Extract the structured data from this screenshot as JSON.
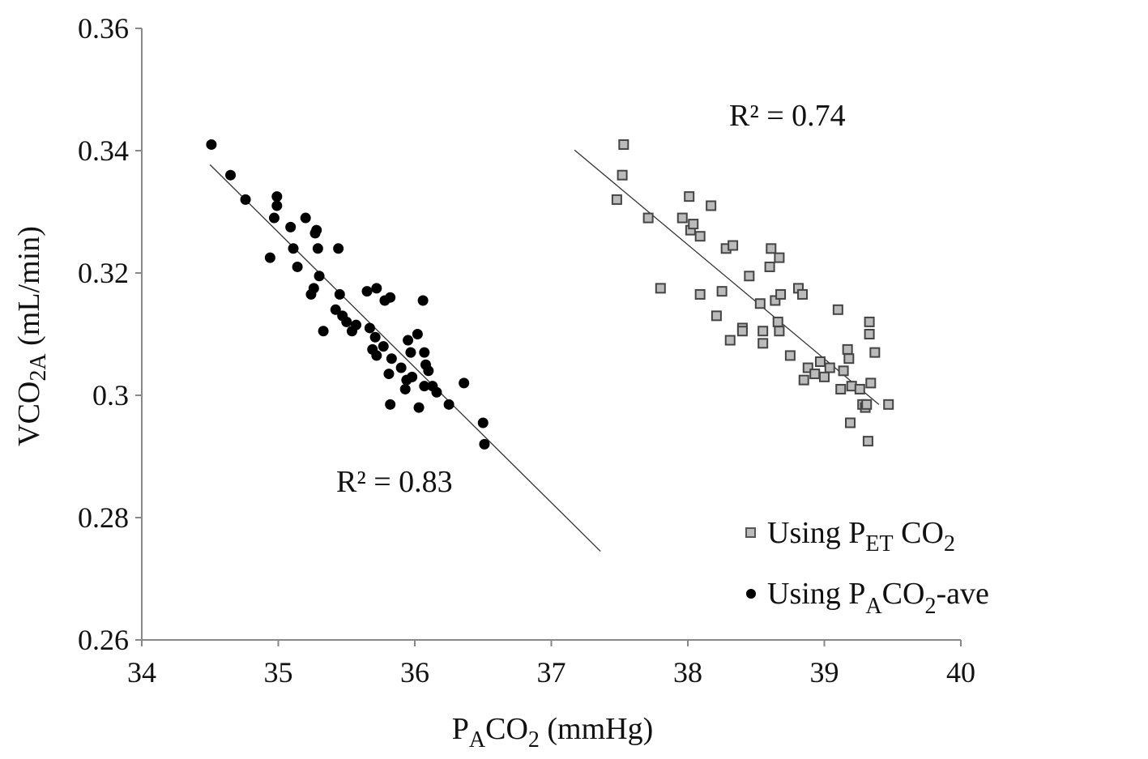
{
  "chart_data": {
    "type": "scatter",
    "title": "",
    "xlabel": {
      "base": "P",
      "sub": "A",
      "mid": "CO",
      "sub2": "2",
      "tail": " (mmHg)"
    },
    "ylabel": {
      "base": "VCO",
      "sub": "2A",
      "tail": " (mL/min)"
    },
    "xlim": [
      34,
      40
    ],
    "ylim": [
      0.26,
      0.36
    ],
    "x_ticks": [
      34,
      35,
      36,
      37,
      38,
      39,
      40
    ],
    "x_tick_labels": [
      "34",
      "35",
      "36",
      "37",
      "38",
      "39",
      "40"
    ],
    "y_ticks": [
      0.26,
      0.28,
      0.3,
      0.32,
      0.34,
      0.36
    ],
    "y_tick_labels": [
      "0.26",
      "0.28",
      "0.3",
      "0.32",
      "0.34",
      "0.36"
    ],
    "grid": false,
    "legend_position": "bottom-right",
    "series": [
      {
        "name": "Using P_ET CO_2",
        "legend": {
          "prefix": "Using P",
          "sub": "ET",
          "mid": " CO",
          "sub2": "2",
          "tail": ""
        },
        "marker": "square-open",
        "color": "#888888",
        "r2_label": "R² = 0.74",
        "trend": {
          "x": [
            37.17,
            39.4
          ],
          "y": [
            0.3401,
            0.2985
          ]
        },
        "points": [
          [
            37.53,
            0.341
          ],
          [
            37.52,
            0.336
          ],
          [
            37.48,
            0.332
          ],
          [
            37.71,
            0.329
          ],
          [
            37.8,
            0.3175
          ],
          [
            37.96,
            0.329
          ],
          [
            38.01,
            0.3325
          ],
          [
            38.02,
            0.327
          ],
          [
            38.04,
            0.328
          ],
          [
            38.09,
            0.326
          ],
          [
            38.09,
            0.3165
          ],
          [
            38.17,
            0.331
          ],
          [
            38.21,
            0.313
          ],
          [
            38.25,
            0.317
          ],
          [
            38.28,
            0.324
          ],
          [
            38.33,
            0.3245
          ],
          [
            38.31,
            0.309
          ],
          [
            38.4,
            0.311
          ],
          [
            38.4,
            0.3105
          ],
          [
            38.45,
            0.3195
          ],
          [
            38.53,
            0.315
          ],
          [
            38.55,
            0.3105
          ],
          [
            38.55,
            0.3085
          ],
          [
            38.6,
            0.321
          ],
          [
            38.61,
            0.324
          ],
          [
            38.64,
            0.3155
          ],
          [
            38.66,
            0.312
          ],
          [
            38.67,
            0.3105
          ],
          [
            38.67,
            0.3225
          ],
          [
            38.68,
            0.3165
          ],
          [
            38.75,
            0.3065
          ],
          [
            38.81,
            0.3175
          ],
          [
            38.84,
            0.3165
          ],
          [
            38.85,
            0.3025
          ],
          [
            38.88,
            0.3045
          ],
          [
            38.93,
            0.3035
          ],
          [
            38.97,
            0.3055
          ],
          [
            39.0,
            0.303
          ],
          [
            39.04,
            0.3045
          ],
          [
            39.1,
            0.314
          ],
          [
            39.12,
            0.301
          ],
          [
            39.14,
            0.304
          ],
          [
            39.17,
            0.3075
          ],
          [
            39.18,
            0.306
          ],
          [
            39.2,
            0.3015
          ],
          [
            39.19,
            0.2955
          ],
          [
            39.26,
            0.301
          ],
          [
            39.28,
            0.2985
          ],
          [
            39.3,
            0.298
          ],
          [
            39.31,
            0.2985
          ],
          [
            39.32,
            0.2925
          ],
          [
            39.33,
            0.312
          ],
          [
            39.33,
            0.31
          ],
          [
            39.34,
            0.302
          ],
          [
            39.37,
            0.307
          ],
          [
            39.47,
            0.2985
          ]
        ]
      },
      {
        "name": "Using P_A CO_2 -ave",
        "legend": {
          "prefix": "Using P",
          "sub": "A",
          "mid": "CO",
          "sub2": "2",
          "tail": "-ave"
        },
        "marker": "circle-filled",
        "color": "#000000",
        "r2_label": "R² = 0.83",
        "trend": {
          "x": [
            34.5,
            37.36
          ],
          "y": [
            0.3377,
            0.2745
          ]
        },
        "points": [
          [
            34.51,
            0.341
          ],
          [
            34.65,
            0.336
          ],
          [
            34.76,
            0.332
          ],
          [
            34.94,
            0.3225
          ],
          [
            34.97,
            0.329
          ],
          [
            34.99,
            0.331
          ],
          [
            34.99,
            0.3325
          ],
          [
            35.09,
            0.3275
          ],
          [
            35.11,
            0.324
          ],
          [
            35.14,
            0.321
          ],
          [
            35.2,
            0.329
          ],
          [
            35.24,
            0.3165
          ],
          [
            35.26,
            0.3175
          ],
          [
            35.27,
            0.3265
          ],
          [
            35.28,
            0.327
          ],
          [
            35.29,
            0.324
          ],
          [
            35.3,
            0.3195
          ],
          [
            35.33,
            0.3105
          ],
          [
            35.42,
            0.314
          ],
          [
            35.44,
            0.324
          ],
          [
            35.45,
            0.3165
          ],
          [
            35.47,
            0.313
          ],
          [
            35.5,
            0.312
          ],
          [
            35.54,
            0.3105
          ],
          [
            35.57,
            0.3115
          ],
          [
            35.65,
            0.317
          ],
          [
            35.67,
            0.311
          ],
          [
            35.69,
            0.3075
          ],
          [
            35.71,
            0.3095
          ],
          [
            35.72,
            0.3175
          ],
          [
            35.72,
            0.3065
          ],
          [
            35.77,
            0.308
          ],
          [
            35.78,
            0.3155
          ],
          [
            35.81,
            0.3035
          ],
          [
            35.82,
            0.316
          ],
          [
            35.82,
            0.2985
          ],
          [
            35.83,
            0.306
          ],
          [
            35.9,
            0.3045
          ],
          [
            35.93,
            0.301
          ],
          [
            35.94,
            0.3025
          ],
          [
            35.95,
            0.309
          ],
          [
            35.97,
            0.307
          ],
          [
            35.98,
            0.303
          ],
          [
            36.02,
            0.31
          ],
          [
            36.03,
            0.298
          ],
          [
            36.06,
            0.3155
          ],
          [
            36.07,
            0.307
          ],
          [
            36.07,
            0.3015
          ],
          [
            36.08,
            0.305
          ],
          [
            36.1,
            0.304
          ],
          [
            36.13,
            0.3015
          ],
          [
            36.16,
            0.3005
          ],
          [
            36.25,
            0.2985
          ],
          [
            36.36,
            0.302
          ],
          [
            36.5,
            0.2955
          ],
          [
            36.51,
            0.292
          ]
        ]
      }
    ]
  }
}
